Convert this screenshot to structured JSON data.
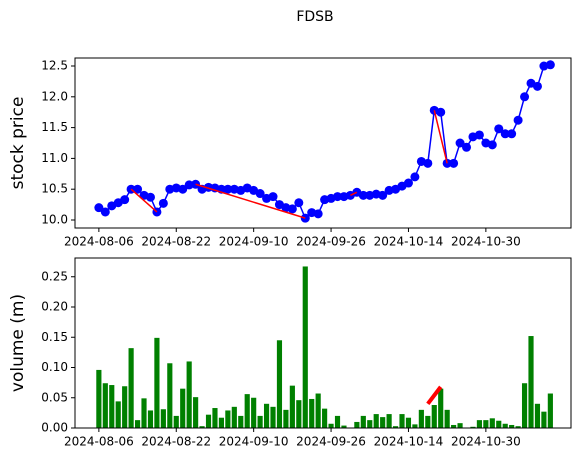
{
  "chart_data": [
    {
      "type": "line",
      "title": "FDSB",
      "ylabel": "stock price",
      "color": "#0000ff",
      "label_color": "#0000ff",
      "categories": [
        "2024-08-06",
        null,
        null,
        null,
        null,
        null,
        null,
        null,
        null,
        null,
        null,
        null,
        "2024-08-22",
        null,
        null,
        null,
        null,
        null,
        null,
        null,
        null,
        null,
        null,
        null,
        "2024-09-10",
        null,
        null,
        null,
        null,
        null,
        null,
        null,
        null,
        null,
        null,
        null,
        "2024-09-26",
        null,
        null,
        null,
        null,
        null,
        null,
        null,
        null,
        null,
        null,
        null,
        "2024-10-14",
        null,
        null,
        null,
        null,
        null,
        null,
        null,
        null,
        null,
        null,
        null,
        "2024-10-30",
        null,
        null,
        null,
        null,
        null,
        null,
        null,
        null,
        null,
        null
      ],
      "values": [
        10.2,
        10.13,
        10.23,
        10.28,
        10.33,
        10.5,
        10.5,
        10.4,
        10.37,
        10.13,
        10.27,
        10.5,
        10.52,
        10.5,
        10.57,
        10.58,
        10.5,
        10.53,
        10.52,
        10.5,
        10.5,
        10.5,
        10.48,
        10.52,
        10.48,
        10.43,
        10.35,
        10.38,
        10.25,
        10.2,
        10.18,
        10.28,
        10.03,
        10.12,
        10.1,
        10.33,
        10.35,
        10.38,
        10.38,
        10.4,
        10.45,
        10.4,
        10.4,
        10.42,
        10.4,
        10.48,
        10.5,
        10.55,
        10.6,
        10.7,
        10.95,
        10.92,
        11.78,
        11.75,
        10.92,
        10.92,
        11.25,
        11.18,
        11.35,
        11.38,
        11.25,
        11.22,
        11.48,
        11.4,
        11.4,
        11.62,
        12.0,
        12.22,
        12.17,
        12.5,
        12.52
      ],
      "overlays": [
        {
          "color": "#ff0000",
          "x": [
            5,
            9
          ],
          "values": [
            10.5,
            10.13
          ]
        },
        {
          "color": "#ff0000",
          "x": [
            15,
            32
          ],
          "values": [
            10.58,
            10.03
          ]
        },
        {
          "color": "#ff0000",
          "x": [
            39,
            40
          ],
          "values": [
            10.4,
            10.45
          ]
        },
        {
          "color": "#ff0000",
          "x": [
            52,
            54
          ],
          "values": [
            11.78,
            10.92
          ]
        }
      ],
      "xlim": [
        -3.7,
        73.2
      ],
      "ylim": [
        9.87,
        12.63
      ],
      "yticks": [
        {
          "value": 10.0,
          "label": "10.0"
        },
        10.5,
        {
          "value": 11.0,
          "label": "11.0"
        },
        11.5,
        {
          "value": 12.0,
          "label": "12.0"
        },
        12.5
      ]
    },
    {
      "type": "bar",
      "ylabel": "volume (m)",
      "color": "#008000",
      "label_color": "#008000",
      "categories": [
        "2024-08-06",
        null,
        null,
        null,
        null,
        null,
        null,
        null,
        null,
        null,
        null,
        null,
        "2024-08-22",
        null,
        null,
        null,
        null,
        null,
        null,
        null,
        null,
        null,
        null,
        null,
        "2024-09-10",
        null,
        null,
        null,
        null,
        null,
        null,
        null,
        null,
        null,
        null,
        null,
        "2024-09-26",
        null,
        null,
        null,
        null,
        null,
        null,
        null,
        null,
        null,
        null,
        null,
        "2024-10-14",
        null,
        null,
        null,
        null,
        null,
        null,
        null,
        null,
        null,
        null,
        null,
        "2024-10-30",
        null,
        null,
        null,
        null,
        null,
        null,
        null,
        null,
        null,
        null
      ],
      "values": [
        0.096,
        0.074,
        0.071,
        0.044,
        0.069,
        0.132,
        0.013,
        0.049,
        0.029,
        0.149,
        0.031,
        0.107,
        0.02,
        0.065,
        0.11,
        0.051,
        0.003,
        0.022,
        0.033,
        0.017,
        0.029,
        0.035,
        0.02,
        0.056,
        0.05,
        0.02,
        0.04,
        0.035,
        0.145,
        0.03,
        0.07,
        0.046,
        0.267,
        0.048,
        0.057,
        0.032,
        0.007,
        0.02,
        0.004,
        0,
        0.01,
        0.02,
        0.013,
        0.023,
        0.018,
        0.023,
        0.003,
        0.023,
        0.017,
        0.006,
        0.03,
        0.02,
        0.038,
        0.065,
        0.03,
        0.005,
        0.008,
        0,
        0.002,
        0.013,
        0.013,
        0.016,
        0.012,
        0.007,
        0.005,
        0.003,
        0.074,
        0.152,
        0.04,
        0.027,
        0.057
      ],
      "overlays": [
        {
          "color": "#ff0000",
          "x": [
            51,
            53
          ],
          "values": [
            0.04,
            0.068
          ]
        }
      ],
      "xlim": [
        -3.7,
        73.2
      ],
      "ylim": [
        0,
        0.281
      ],
      "yticks": [
        {
          "value": 0,
          "label": "0.00"
        },
        {
          "value": 0.05,
          "label": "0.05"
        },
        {
          "value": 0.1,
          "label": "0.10"
        },
        {
          "value": 0.15,
          "label": "0.15"
        },
        {
          "value": 0.2,
          "label": "0.20"
        },
        {
          "value": 0.25,
          "label": "0.25"
        }
      ]
    }
  ]
}
